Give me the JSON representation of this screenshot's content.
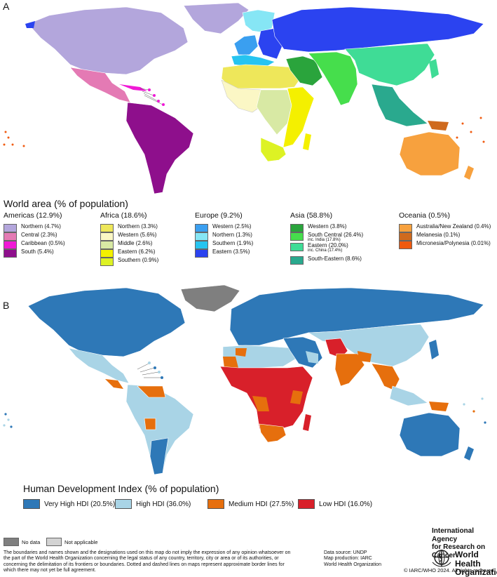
{
  "panel_a": {
    "label": "A",
    "legend_title": "World area (% of population)",
    "regions": [
      {
        "heading": "Americas (12.9%)",
        "items": [
          {
            "label": "Northern (4.7%)",
            "color": "#b3a6dc"
          },
          {
            "label": "Central (2.3%)",
            "color": "#e47ab4"
          },
          {
            "label": "Caribbean (0.5%)",
            "color": "#f019d6"
          },
          {
            "label": "South (5.4%)",
            "color": "#8e0f8c"
          }
        ]
      },
      {
        "heading": "Africa (18.6%)",
        "items": [
          {
            "label": "Northern (3.3%)",
            "color": "#eee75a"
          },
          {
            "label": "Western (5.6%)",
            "color": "#fbf7c5"
          },
          {
            "label": "Middle (2.6%)",
            "color": "#d8e9a4"
          },
          {
            "label": "Eastern (6.2%)",
            "color": "#f4f000"
          },
          {
            "label": "Southern (0.9%)",
            "color": "#ddf224"
          }
        ]
      },
      {
        "heading": "Europe (9.2%)",
        "items": [
          {
            "label": "Western (2.5%)",
            "color": "#3a9ff0"
          },
          {
            "label": "Northern (1.3%)",
            "color": "#86e6f5"
          },
          {
            "label": "Southern (1.9%)",
            "color": "#26c4f0"
          },
          {
            "label": "Eastern (3.5%)",
            "color": "#2b43f0"
          }
        ]
      },
      {
        "heading": "Asia (58.8%)",
        "items": [
          {
            "label": "Western (3.8%)",
            "color": "#2aa43c"
          },
          {
            "label": "South Central (26.4%)",
            "sub": "inc. India (17.8%)",
            "color": "#46de4c"
          },
          {
            "label": "Eastern (20.0%)",
            "sub": "inc. China (17.4%)",
            "color": "#3fdc96"
          },
          {
            "label": "South-Eastern (8.6%)",
            "color": "#2aa98e"
          }
        ]
      },
      {
        "heading": "Oceania (0.5%)",
        "items": [
          {
            "label": "Australia/New Zealand (0.4%)",
            "color": "#f7a13e"
          },
          {
            "label": "Melanesia (0.1%)",
            "color": "#cf6a1e"
          },
          {
            "label": "Micronesia/Polynesia (0.01%)",
            "color": "#f05a0f"
          }
        ]
      }
    ]
  },
  "panel_b": {
    "label": "B",
    "legend_title": "Human Development Index (% of population)",
    "items": [
      {
        "label": "Very High HDI (20.5%)",
        "color": "#2e78b7"
      },
      {
        "label": "High HDI (36.0%)",
        "color": "#a9d4e6"
      },
      {
        "label": "Medium HDI (27.5%)",
        "color": "#e66f0d"
      },
      {
        "label": "Low HDI (16.0%)",
        "color": "#d8202a"
      }
    ],
    "no_data": {
      "label": "No data",
      "color": "#7f7f7f"
    },
    "not_applicable": {
      "label": "Not applicable",
      "color": "#d3d3d3"
    }
  },
  "footer": {
    "disclaimer": "The boundaries and names shown and the designations used on this map do not imply the expression of any opinion whatsoever on the part of the World Health Organization concerning the legal status of any country, territory, city or area or of its authorities, or concerning the delimitation of its frontiers or boundaries. Dotted and dashed lines on maps represent approximate border lines for which there may not yet be full agreement.",
    "data_source": "Data source: UNDP",
    "map_production": "Map production: IARC",
    "map_org": "World Health Organization",
    "iarc_line1": "International Agency",
    "iarc_line2": "for Research on Cancer",
    "who_line1": "World Health",
    "who_line2": "Organization",
    "copyright": "© IARC/WHO 2024. All rights reserved"
  }
}
